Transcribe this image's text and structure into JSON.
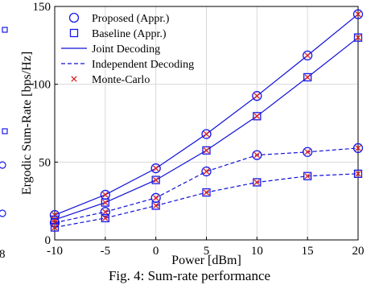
{
  "chart_data": {
    "type": "line",
    "xlabel": "Power [dBm]",
    "ylabel": "Ergodic Sum-Rate [bps/Hz]",
    "xlim": [
      -10,
      20
    ],
    "ylim": [
      0,
      150
    ],
    "xticks": [
      "-10",
      "-5",
      "0",
      "5",
      "10",
      "15",
      "20"
    ],
    "yticks": [
      "0",
      "50",
      "100",
      "150"
    ],
    "grid": true,
    "legend_position": "top-left",
    "x": [
      -10,
      -5,
      0,
      5,
      10,
      15,
      20
    ],
    "series": [
      {
        "name": "Proposed (Appr.)",
        "line": "joint",
        "marker": "circle",
        "values": [
          16,
          29,
          46,
          68,
          92.5,
          118.5,
          145
        ]
      },
      {
        "name": "Baseline (Appr.)",
        "line": "joint",
        "marker": "square",
        "values": [
          13,
          24,
          38.5,
          57.5,
          79.5,
          104.5,
          130
        ]
      },
      {
        "name": "Proposed (Appr.)",
        "line": "independent",
        "marker": "circle",
        "values": [
          11,
          18,
          27,
          44,
          54.5,
          56.5,
          59
        ]
      },
      {
        "name": "Baseline (Appr.)",
        "line": "independent",
        "marker": "square",
        "values": [
          8,
          14,
          22,
          30.5,
          37,
          41,
          42.5
        ]
      }
    ],
    "legend": [
      {
        "label": "Proposed (Appr.)",
        "kind": "circle"
      },
      {
        "label": "Baseline (Appr.)",
        "kind": "square"
      },
      {
        "label": "Joint Decoding",
        "kind": "solid"
      },
      {
        "label": "Independent Decoding",
        "kind": "dashed"
      },
      {
        "label": "Monte-Carlo",
        "kind": "cross"
      }
    ],
    "colors": {
      "line": "#1010d8",
      "marker": "#1a1ae6",
      "montecarlo": "#e02020"
    }
  },
  "caption": "Fig. 4: Sum-rate performance",
  "left_fragment": {
    "tick": "8"
  }
}
